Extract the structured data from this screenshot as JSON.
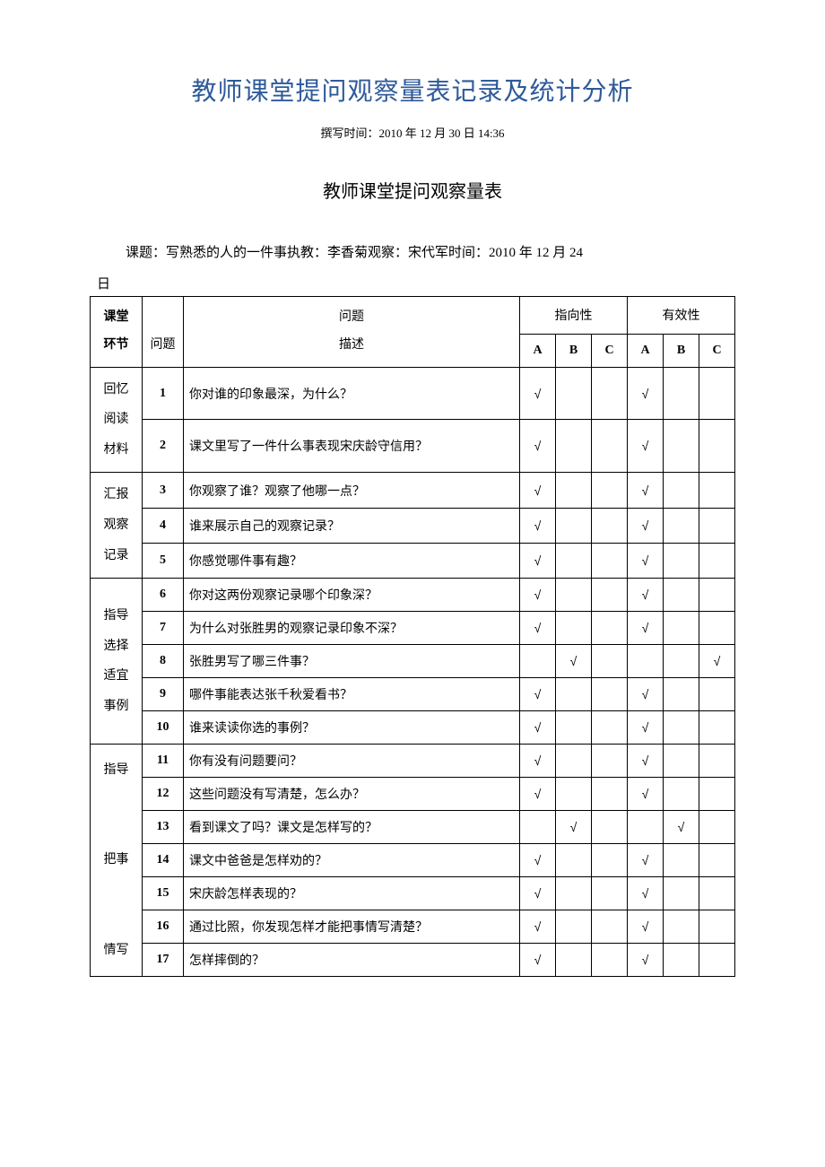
{
  "document": {
    "title": "教师课堂提问观察量表记录及统计分析",
    "write_time_label": "撰写时间：2010 年 12 月 30 日 14:36",
    "table_title": "教师课堂提问观察量表",
    "topic_line": "课题：写熟悉的人的一件事执教：李香菊观察：宋代军时间：2010 年 12 月 24",
    "day_char": "日"
  },
  "headers": {
    "stage": "课堂\n环节",
    "question_num": "问题",
    "question_desc_top": "问题",
    "question_desc_bottom": "描述",
    "directionality": "指向性",
    "effectiveness": "有效性",
    "A": "A",
    "B": "B",
    "C": "C"
  },
  "check_mark": "√",
  "stages": [
    {
      "label": "回忆\n阅读\n材料",
      "rows": 2
    },
    {
      "label": "汇报\n观察\n记录",
      "rows": 3
    },
    {
      "label": "指导\n选择\n适宜\n事例",
      "rows": 5
    },
    {
      "label": "指导\n\n把事\n\n情写",
      "rows": 7
    }
  ],
  "rows": [
    {
      "n": "1",
      "desc": "你对谁的印象最深，为什么？",
      "dir": "A",
      "eff": "A"
    },
    {
      "n": "2",
      "desc": "课文里写了一件什么事表现宋庆龄守信用？",
      "dir": "A",
      "eff": "A"
    },
    {
      "n": "3",
      "desc": "你观察了谁？观察了他哪一点？",
      "dir": "A",
      "eff": "A"
    },
    {
      "n": "4",
      "desc": "谁来展示自己的观察记录？",
      "dir": "A",
      "eff": "A"
    },
    {
      "n": "5",
      "desc": "你感觉哪件事有趣？",
      "dir": "A",
      "eff": "A"
    },
    {
      "n": "6",
      "desc": "你对这两份观察记录哪个印象深？",
      "dir": "A",
      "eff": "A"
    },
    {
      "n": "7",
      "desc": "为什么对张胜男的观察记录印象不深？",
      "dir": "A",
      "eff": "A"
    },
    {
      "n": "8",
      "desc": "张胜男写了哪三件事？",
      "dir": "B",
      "eff": "C"
    },
    {
      "n": "9",
      "desc": "哪件事能表达张千秋爱看书？",
      "dir": "A",
      "eff": "A"
    },
    {
      "n": "10",
      "desc": "谁来读读你选的事例？",
      "dir": "A",
      "eff": "A"
    },
    {
      "n": "11",
      "desc": "你有没有问题要问？",
      "dir": "A",
      "eff": "A"
    },
    {
      "n": "12",
      "desc": "这些问题没有写清楚，怎么办？",
      "dir": "A",
      "eff": "A"
    },
    {
      "n": "13",
      "desc": "看到课文了吗？课文是怎样写的？",
      "dir": "B",
      "eff": "B"
    },
    {
      "n": "14",
      "desc": "课文中爸爸是怎样劝的？",
      "dir": "A",
      "eff": "A"
    },
    {
      "n": "15",
      "desc": "宋庆龄怎样表现的？",
      "dir": "A",
      "eff": "A"
    },
    {
      "n": "16",
      "desc": "通过比照，你发现怎样才能把事情写清楚？",
      "dir": "A",
      "eff": "A"
    },
    {
      "n": "17",
      "desc": "怎样摔倒的？",
      "dir": "A",
      "eff": "A"
    }
  ],
  "colors": {
    "title": "#2e5a9a",
    "text": "#000000",
    "border": "#000000",
    "background": "#ffffff"
  }
}
